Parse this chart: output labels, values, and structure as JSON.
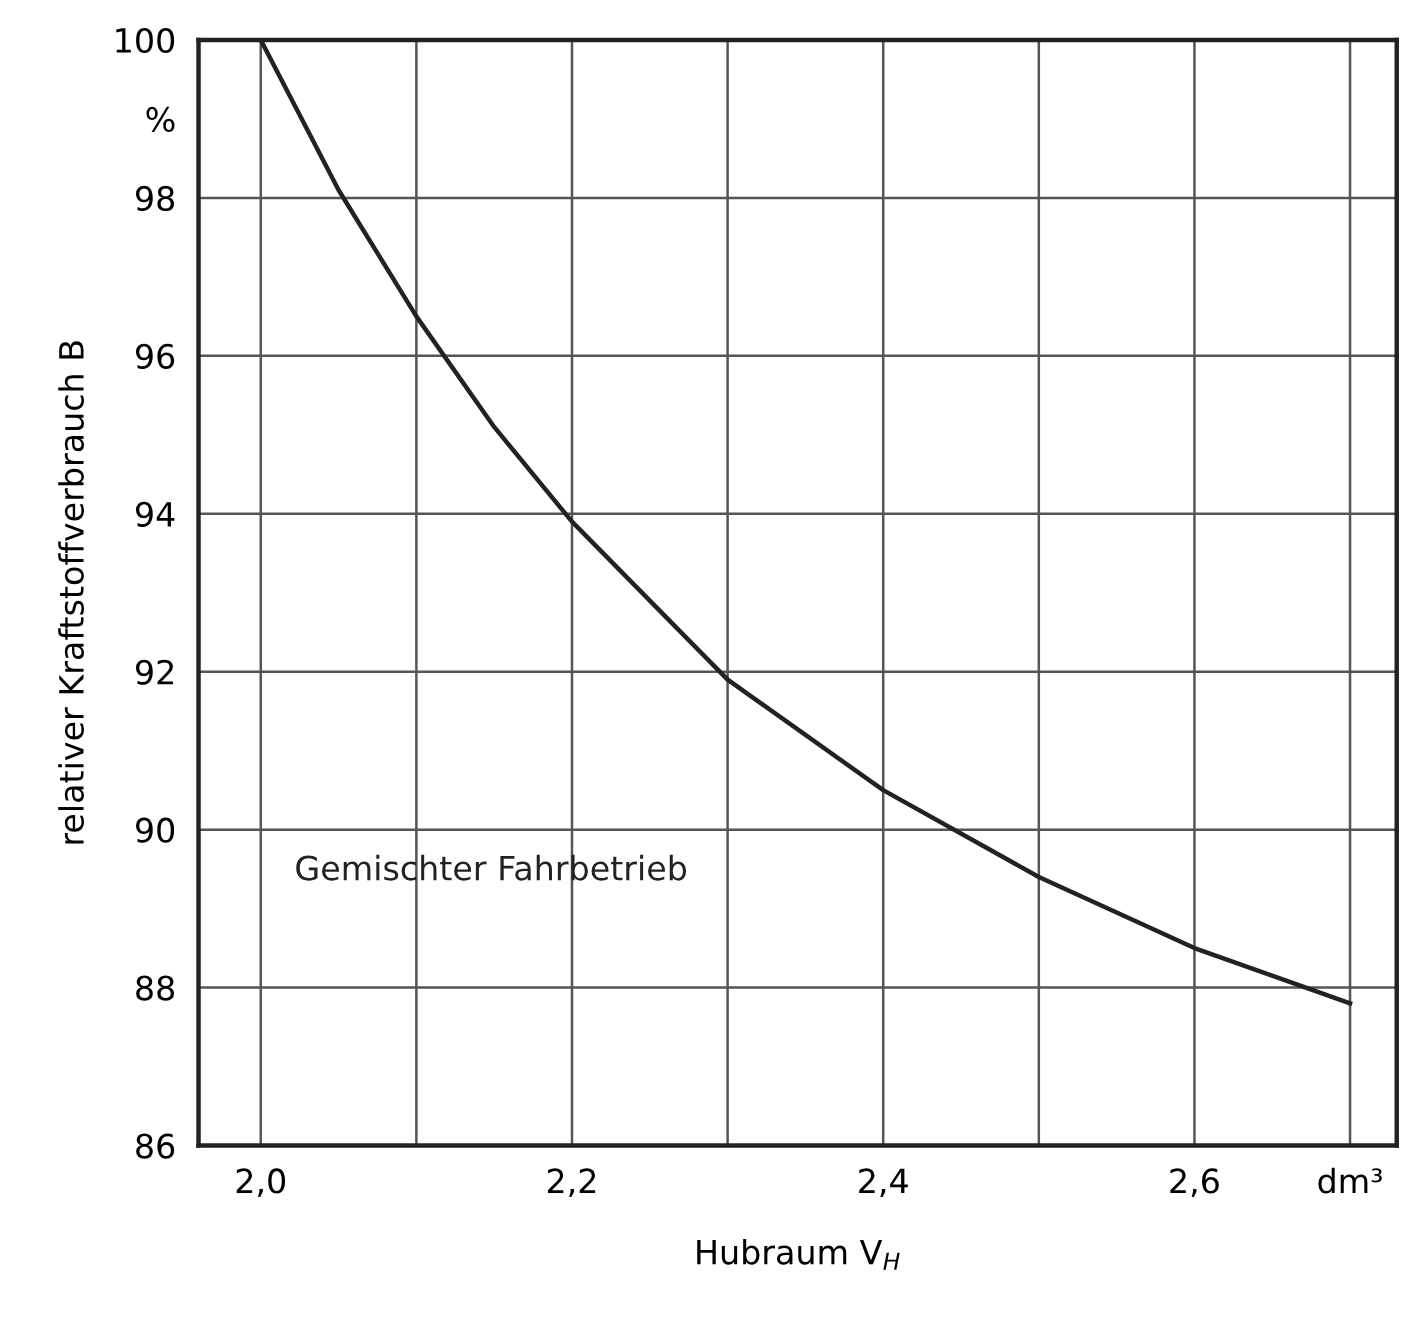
{
  "chart_data": {
    "type": "line",
    "xlabel": "Hubraum V$_{H}$",
    "ylabel": "relativer Kraftstoffverbrauch B",
    "annotations": [
      "Gemischter Fahrbetrieb"
    ],
    "x": [
      2.0,
      2.05,
      2.1,
      2.15,
      2.2,
      2.3,
      2.4,
      2.5,
      2.6,
      2.7
    ],
    "series": [
      {
        "color": "#222222",
        "values": [
          100,
          98.1,
          96.5,
          95.1,
          93.9,
          91.9,
          90.5,
          89.4,
          88.5,
          87.8
        ]
      }
    ],
    "xlim": [
      1.96,
      2.73
    ],
    "ylim": [
      86,
      100
    ],
    "xticks": [
      {
        "value": 2.0,
        "label": "2,0"
      },
      {
        "value": 2.1,
        "label": null
      },
      {
        "value": 2.2,
        "label": "2,2"
      },
      {
        "value": 2.3,
        "label": null
      },
      {
        "value": 2.4,
        "label": "2,4"
      },
      {
        "value": 2.5,
        "label": null
      },
      {
        "value": 2.6,
        "label": "2,6"
      },
      {
        "value": 2.7,
        "label": "dm³"
      }
    ],
    "yticks": [
      86,
      88,
      90,
      92,
      94,
      96,
      98,
      {
        "value": 99,
        "label": "%"
      },
      100
    ],
    "grid": true,
    "marker": "none",
    "line_style": "solid"
  }
}
